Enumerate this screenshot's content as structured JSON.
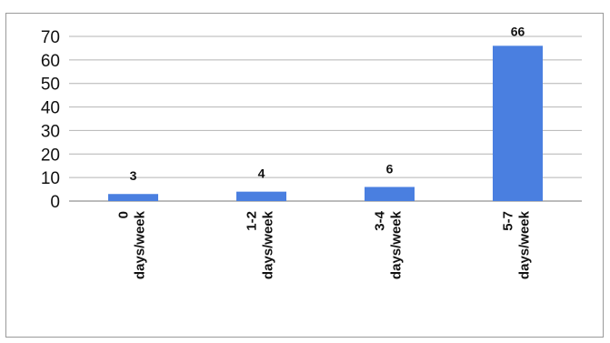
{
  "chart_data": {
    "type": "bar",
    "categories": [
      [
        "0",
        "days/week"
      ],
      [
        "1-2",
        "days/week"
      ],
      [
        "3-4",
        "days/week"
      ],
      [
        "5-7",
        "days/week"
      ]
    ],
    "values": [
      3,
      4,
      6,
      66
    ],
    "data_labels": [
      "3",
      "4",
      "6",
      "66"
    ],
    "ylim": [
      0,
      70
    ],
    "yticks": [
      0,
      10,
      20,
      30,
      40,
      50,
      60,
      70
    ],
    "grid": true,
    "colors": {
      "bar": "#4a7fe0",
      "grid": "#b4b4b4",
      "axis": "#777777"
    }
  }
}
